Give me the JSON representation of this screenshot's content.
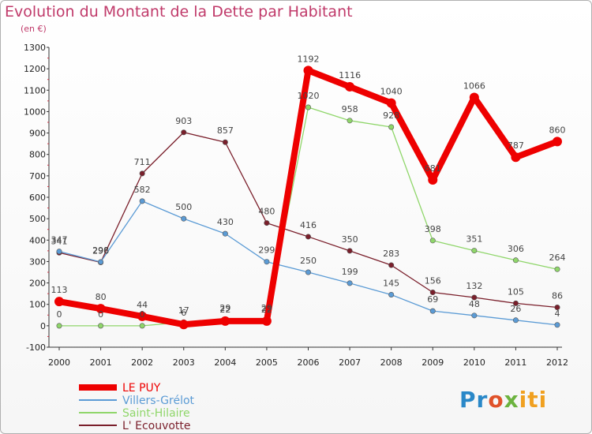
{
  "chart_data": {
    "type": "line",
    "title": "Evolution du Montant de la Dette par Habitant",
    "subtitle": "(en €)",
    "x": [
      "2000",
      "2001",
      "2002",
      "2003",
      "2004",
      "2005",
      "2006",
      "2007",
      "2008",
      "2009",
      "2010",
      "2011",
      "2012"
    ],
    "ylim": [
      -100,
      1300
    ],
    "yticks": [
      -100,
      0,
      100,
      200,
      300,
      400,
      500,
      600,
      700,
      800,
      900,
      1000,
      1100,
      1200,
      1300
    ],
    "grid": false,
    "legend_placement": "bottom-left",
    "series": [
      {
        "name": "LE PUY",
        "color": "#ee0000",
        "values": [
          113,
          80,
          44,
          6,
          22,
          22,
          1192,
          1116,
          1040,
          681,
          1066,
          787,
          860
        ],
        "labels": [
          "113",
          "80",
          "44",
          "6",
          "22",
          "22",
          "1192",
          "1116",
          "1040",
          "681",
          "1066",
          "787",
          "860"
        ]
      },
      {
        "name": "Villers-Grélot",
        "color": "#5b9bd5",
        "values": [
          347,
          298,
          582,
          500,
          430,
          299,
          250,
          199,
          145,
          69,
          48,
          26,
          4
        ],
        "labels": [
          "347",
          "298",
          "582",
          "500",
          "430",
          "299",
          "250",
          "199",
          "145",
          "69",
          "48",
          "26",
          "4"
        ]
      },
      {
        "name": "Saint-Hilaire",
        "color": "#8fd66a",
        "values": [
          0,
          0,
          0,
          17,
          29,
          29,
          1020,
          958,
          928,
          398,
          351,
          306,
          264
        ],
        "labels": [
          "0",
          "0",
          "0",
          "17",
          "29",
          "29",
          "1020",
          "958",
          "928",
          "398",
          "351",
          "306",
          "264"
        ]
      },
      {
        "name": "L' Ecouvotte",
        "color": "#7a1f2b",
        "values": [
          341,
          296,
          711,
          903,
          857,
          480,
          416,
          350,
          283,
          156,
          132,
          105,
          86
        ],
        "labels": [
          "341",
          "296",
          "711",
          "903",
          "857",
          "480",
          "416",
          "350",
          "283",
          "156",
          "132",
          "105",
          "86"
        ]
      }
    ]
  },
  "logo": {
    "p1": "Pr",
    "p2": "o",
    "p3": "x",
    "p4": "iti"
  }
}
